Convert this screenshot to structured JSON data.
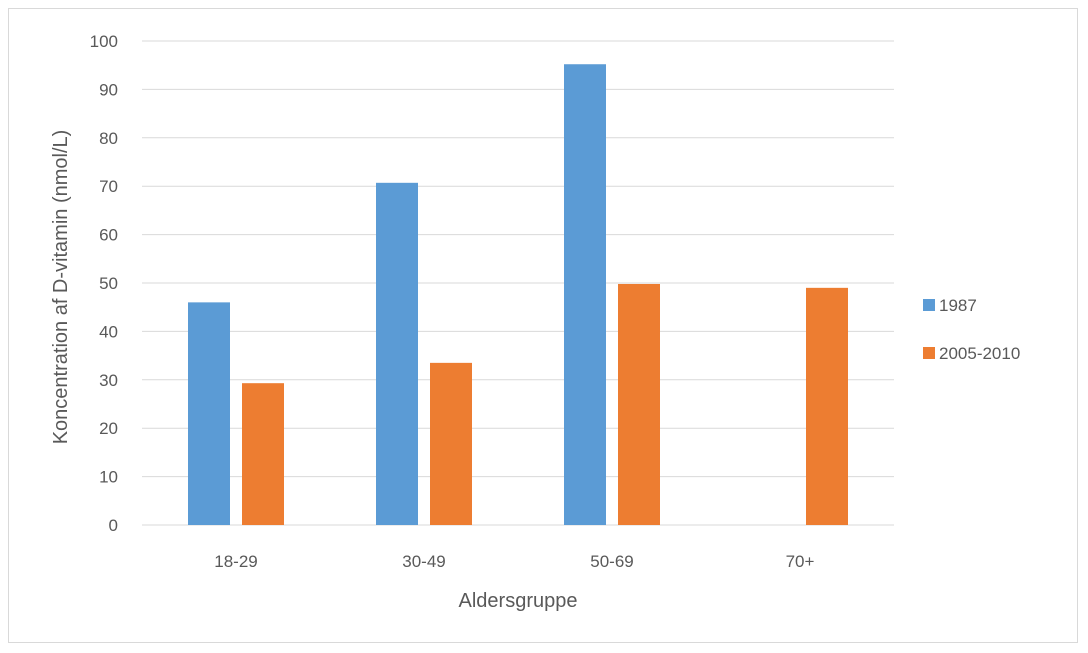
{
  "chart_data": {
    "type": "bar",
    "title": "",
    "xlabel": "Aldersgruppe",
    "ylabel": "Koncentration af D-vitamin  (nmol/L)",
    "categories": [
      "18-29",
      "30-49",
      "50-69",
      "70+"
    ],
    "series": [
      {
        "name": "1987",
        "color": "#5b9bd5",
        "values": [
          46,
          70.7,
          95.2,
          null
        ]
      },
      {
        "name": "2005-2010",
        "color": "#ed7d31",
        "values": [
          29.3,
          33.5,
          49.8,
          49
        ]
      }
    ],
    "ylim": [
      0,
      100
    ],
    "yticks": [
      0,
      10,
      20,
      30,
      40,
      50,
      60,
      70,
      80,
      90,
      100
    ],
    "grid": true,
    "gridline_color": "#d9d9d9",
    "legend_position": "right"
  }
}
